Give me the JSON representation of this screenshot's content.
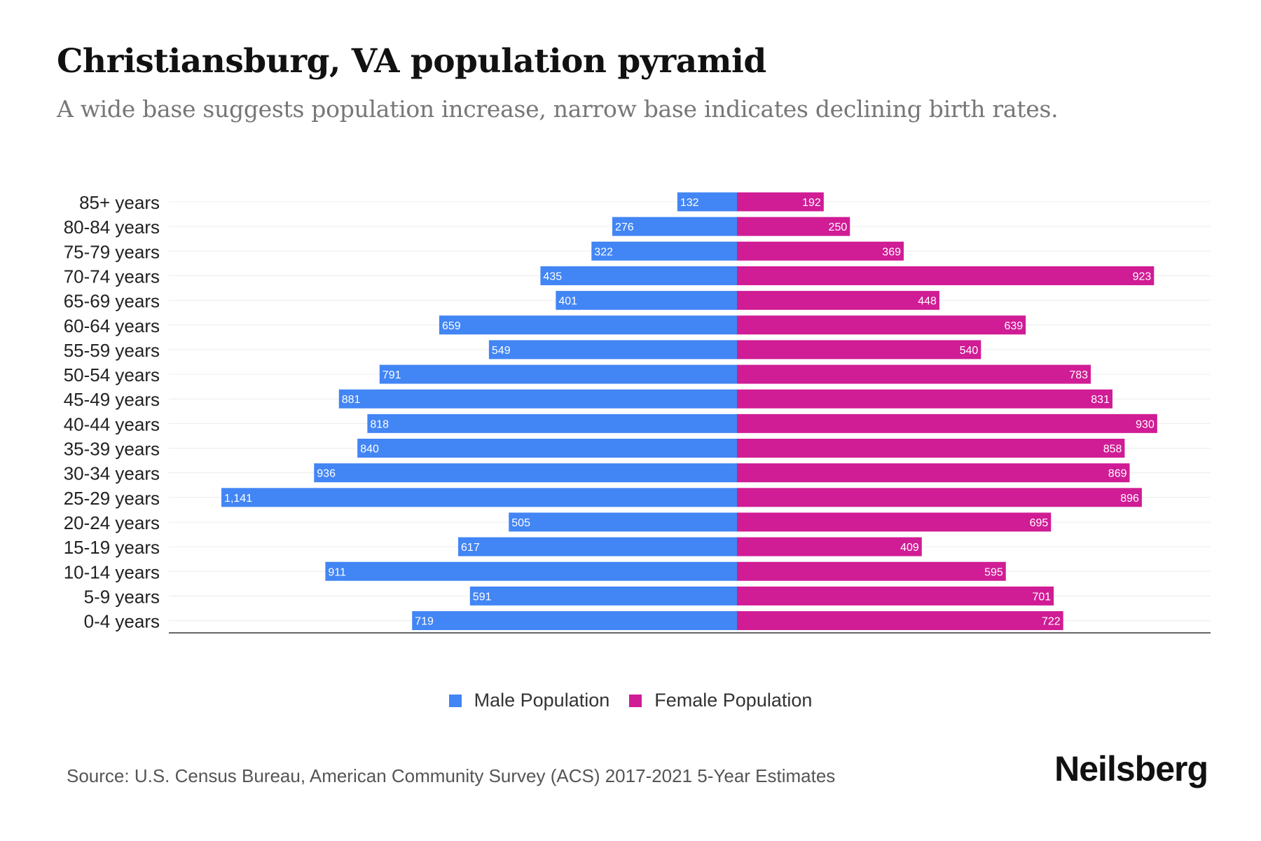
{
  "header": {
    "title": "Christiansburg, VA population pyramid",
    "subtitle": "A wide base suggests population increase, narrow base indicates declining birth rates."
  },
  "chart_data": {
    "type": "bar",
    "orientation": "horizontal-pyramid",
    "categories": [
      "85+ years",
      "80-84 years",
      "75-79 years",
      "70-74 years",
      "65-69 years",
      "60-64 years",
      "55-59 years",
      "50-54 years",
      "45-49 years",
      "40-44 years",
      "35-39 years",
      "30-34 years",
      "25-29 years",
      "20-24 years",
      "15-19 years",
      "10-14 years",
      "5-9 years",
      "0-4 years"
    ],
    "series": [
      {
        "name": "Male Population",
        "color": "#4285f4",
        "values": [
          132,
          276,
          322,
          435,
          401,
          659,
          549,
          791,
          881,
          818,
          840,
          936,
          1141,
          505,
          617,
          911,
          591,
          719
        ],
        "labels": [
          "132",
          "276",
          "322",
          "435",
          "401",
          "659",
          "549",
          "791",
          "881",
          "818",
          "840",
          "936",
          "1,141",
          "505",
          "617",
          "911",
          "591",
          "719"
        ]
      },
      {
        "name": "Female Population",
        "color": "#d01c95",
        "values": [
          192,
          250,
          369,
          923,
          448,
          639,
          540,
          783,
          831,
          930,
          858,
          869,
          896,
          695,
          409,
          595,
          701,
          722
        ],
        "labels": [
          "192",
          "250",
          "369",
          "923",
          "448",
          "639",
          "540",
          "783",
          "831",
          "930",
          "858",
          "869",
          "896",
          "695",
          "409",
          "595",
          "701",
          "722"
        ]
      }
    ],
    "xlim": [
      -1260,
      1050
    ],
    "grid": true,
    "legend_position": "bottom-center"
  },
  "legend": {
    "male": "Male Population",
    "female": "Female Population"
  },
  "footer": {
    "source": "Source: U.S. Census Bureau, American Community Survey (ACS) 2017-2021 5-Year Estimates",
    "logo": "Neilsberg"
  }
}
